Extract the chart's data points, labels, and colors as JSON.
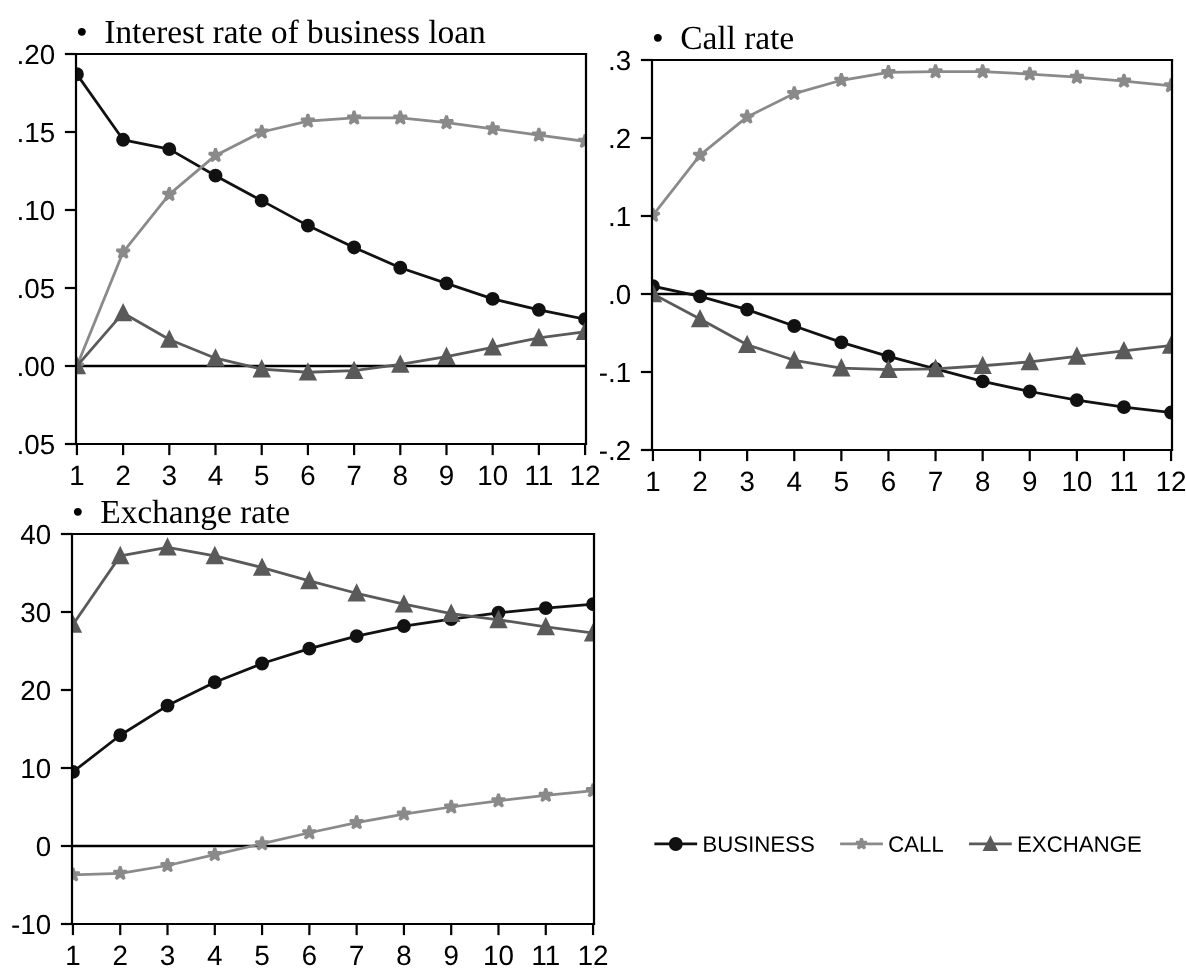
{
  "chart_data": [
    {
      "type": "line",
      "title": "•  Interest rate of business loan",
      "categories": [
        "1",
        "2",
        "3",
        "4",
        "5",
        "6",
        "7",
        "8",
        "9",
        "10",
        "11",
        "12"
      ],
      "series": [
        {
          "color": "#111111",
          "marker": "circle",
          "values": [
            0.187,
            0.145,
            0.139,
            0.122,
            0.106,
            0.09,
            0.076,
            0.063,
            0.053,
            0.043,
            0.036,
            0.03
          ]
        },
        {
          "color": "#8a8a8a",
          "marker": "star",
          "values": [
            0.0,
            0.073,
            0.11,
            0.135,
            0.15,
            0.157,
            0.159,
            0.159,
            0.156,
            0.152,
            0.148,
            0.144
          ]
        },
        {
          "color": "#5a5a5a",
          "marker": "triangle",
          "values": [
            0.0,
            0.034,
            0.017,
            0.005,
            -0.002,
            -0.004,
            -0.003,
            0.001,
            0.006,
            0.012,
            0.018,
            0.022
          ]
        }
      ],
      "ylim": [
        -0.05,
        0.2
      ],
      "yticks": [
        {
          "value": -0.05,
          "label": ".05"
        },
        {
          "value": 0.0,
          "label": ".00"
        },
        {
          "value": 0.05,
          "label": ".05"
        },
        {
          "value": 0.1,
          "label": ".10"
        },
        {
          "value": 0.15,
          "label": ".15"
        },
        {
          "value": 0.2,
          "label": ".20"
        }
      ],
      "ref_lines": [
        {
          "axis": "y",
          "value": 0,
          "color": "#000000"
        }
      ],
      "grid": false,
      "legend": false
    },
    {
      "type": "line",
      "title": "•  Call rate",
      "categories": [
        "1",
        "2",
        "3",
        "4",
        "5",
        "6",
        "7",
        "8",
        "9",
        "10",
        "11",
        "12"
      ],
      "series": [
        {
          "color": "#111111",
          "marker": "circle",
          "values": [
            0.01,
            -0.003,
            -0.02,
            -0.041,
            -0.062,
            -0.08,
            -0.096,
            -0.112,
            -0.125,
            -0.136,
            -0.145,
            -0.152
          ]
        },
        {
          "color": "#8a8a8a",
          "marker": "star",
          "values": [
            0.101,
            0.178,
            0.227,
            0.257,
            0.274,
            0.284,
            0.285,
            0.285,
            0.282,
            0.278,
            0.273,
            0.267
          ]
        },
        {
          "color": "#5a5a5a",
          "marker": "triangle",
          "values": [
            0.0,
            -0.032,
            -0.065,
            -0.085,
            -0.095,
            -0.097,
            -0.096,
            -0.092,
            -0.087,
            -0.08,
            -0.073,
            -0.066
          ]
        }
      ],
      "ylim": [
        -0.2,
        0.3
      ],
      "yticks": [
        {
          "value": -0.2,
          "label": "-.2"
        },
        {
          "value": -0.1,
          "label": "-.1"
        },
        {
          "value": 0.0,
          "label": ".0"
        },
        {
          "value": 0.1,
          "label": ".1"
        },
        {
          "value": 0.2,
          "label": ".2"
        },
        {
          "value": 0.3,
          "label": ".3"
        }
      ],
      "ref_lines": [
        {
          "axis": "y",
          "value": 0,
          "color": "#000000"
        }
      ],
      "grid": false,
      "legend": false
    },
    {
      "type": "line",
      "title": "•  Exchange rate",
      "categories": [
        "1",
        "2",
        "3",
        "4",
        "5",
        "6",
        "7",
        "8",
        "9",
        "10",
        "11",
        "12"
      ],
      "series": [
        {
          "name": "BUSINESS",
          "color": "#111111",
          "marker": "circle",
          "values": [
            9.5,
            14.2,
            18.0,
            21.0,
            23.4,
            25.3,
            26.9,
            28.2,
            29.1,
            29.9,
            30.5,
            31.0
          ]
        },
        {
          "name": "CALL",
          "color": "#8a8a8a",
          "marker": "star",
          "values": [
            -3.7,
            -3.5,
            -2.5,
            -1.1,
            0.3,
            1.7,
            3.0,
            4.1,
            5.0,
            5.8,
            6.5,
            7.1
          ]
        },
        {
          "name": "EXCHANGE",
          "color": "#5a5a5a",
          "marker": "triangle",
          "values": [
            28.4,
            37.2,
            38.3,
            37.2,
            35.7,
            34.0,
            32.4,
            31.0,
            29.8,
            29.0,
            28.1,
            27.3
          ]
        }
      ],
      "ylim": [
        -10,
        40
      ],
      "yticks": [
        -10,
        0,
        10,
        20,
        30,
        40
      ],
      "ref_lines": [
        {
          "axis": "y",
          "value": 0,
          "color": "#000000"
        }
      ],
      "grid": false,
      "legend": "right"
    }
  ]
}
